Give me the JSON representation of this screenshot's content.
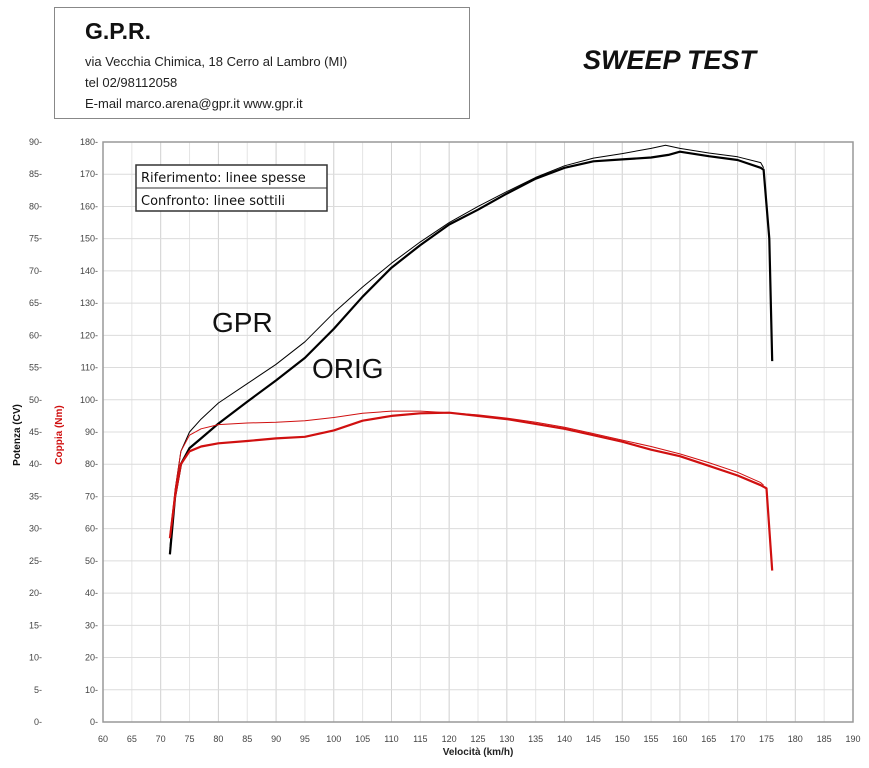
{
  "header": {
    "company": "G.P.R.",
    "address": "via Vecchia Chimica, 18 Cerro al Lambro (MI)",
    "phone": "tel 02/98112058",
    "contact": "E-mail marco.arena@gpr.it  www.gpr.it"
  },
  "title": "SWEEP TEST",
  "chart_data": {
    "type": "line",
    "title": "SWEEP TEST",
    "xlabel": "Velocità (km/h)",
    "ylabel_left": "Potenza (CV)",
    "ylabel_right": "Coppia (Nm)",
    "xlim": [
      60,
      190
    ],
    "ylim_left": [
      0,
      90
    ],
    "ylim_right": [
      0,
      180
    ],
    "xticks": [
      60,
      65,
      70,
      75,
      80,
      85,
      90,
      95,
      100,
      105,
      110,
      115,
      120,
      125,
      130,
      135,
      140,
      145,
      150,
      155,
      160,
      165,
      170,
      175,
      180,
      185,
      190
    ],
    "yticks_left": [
      0,
      5,
      10,
      15,
      20,
      25,
      30,
      35,
      40,
      45,
      50,
      55,
      60,
      65,
      70,
      75,
      80,
      85,
      90
    ],
    "yticks_right": [
      0,
      10,
      20,
      30,
      40,
      50,
      60,
      70,
      80,
      90,
      100,
      110,
      120,
      130,
      140,
      150,
      160,
      170,
      180
    ],
    "grid": true,
    "legend": [
      "Riferimento: linee spesse",
      "Confronto: linee sottili"
    ],
    "legend_placement": "top-left",
    "annotations": [
      "GPR",
      "ORIG"
    ],
    "colors": {
      "power": "#000000",
      "torque": "#d01010"
    },
    "series": [
      {
        "name": "ORIG",
        "quantity": "power",
        "axis": "left",
        "style": "thick",
        "points": [
          [
            71.6,
            26
          ],
          [
            72.5,
            35
          ],
          [
            73.5,
            40
          ],
          [
            75,
            42.5
          ],
          [
            77,
            44
          ],
          [
            80,
            46.3
          ],
          [
            85,
            49.7
          ],
          [
            90,
            53
          ],
          [
            95,
            56.5
          ],
          [
            100,
            61
          ],
          [
            105,
            66
          ],
          [
            110,
            70.5
          ],
          [
            115,
            74
          ],
          [
            120,
            77.2
          ],
          [
            125,
            79.5
          ],
          [
            130,
            82
          ],
          [
            135,
            84.3
          ],
          [
            140,
            86
          ],
          [
            145,
            87
          ],
          [
            150,
            87.3
          ],
          [
            155,
            87.6
          ],
          [
            158,
            88
          ],
          [
            160,
            88.5
          ],
          [
            165,
            87.8
          ],
          [
            170,
            87.2
          ],
          [
            174,
            86
          ],
          [
            174.5,
            85.7
          ],
          [
            175.5,
            75
          ],
          [
            176,
            56
          ]
        ]
      },
      {
        "name": "GPR",
        "quantity": "power",
        "axis": "left",
        "style": "thin",
        "points": [
          [
            71.6,
            27
          ],
          [
            72.5,
            36
          ],
          [
            73.5,
            42
          ],
          [
            75,
            45
          ],
          [
            77,
            47
          ],
          [
            80,
            49.5
          ],
          [
            85,
            52.5
          ],
          [
            90,
            55.5
          ],
          [
            95,
            59
          ],
          [
            100,
            63.5
          ],
          [
            105,
            67.5
          ],
          [
            110,
            71.2
          ],
          [
            115,
            74.5
          ],
          [
            120,
            77.5
          ],
          [
            125,
            80
          ],
          [
            130,
            82.3
          ],
          [
            135,
            84.5
          ],
          [
            140,
            86.3
          ],
          [
            145,
            87.5
          ],
          [
            150,
            88.2
          ],
          [
            155,
            89
          ],
          [
            157.5,
            89.5
          ],
          [
            160,
            89
          ],
          [
            165,
            88.3
          ],
          [
            170,
            87.7
          ],
          [
            174,
            86.8
          ],
          [
            174.5,
            86
          ]
        ]
      },
      {
        "name": "ORIG",
        "quantity": "torque",
        "axis": "right",
        "style": "thick",
        "points": [
          [
            71.6,
            57
          ],
          [
            72.5,
            70
          ],
          [
            73.5,
            80
          ],
          [
            75,
            84
          ],
          [
            77,
            85.5
          ],
          [
            80,
            86.5
          ],
          [
            85,
            87.2
          ],
          [
            90,
            88
          ],
          [
            95,
            88.5
          ],
          [
            100,
            90.5
          ],
          [
            105,
            93.5
          ],
          [
            110,
            95
          ],
          [
            115,
            95.8
          ],
          [
            120,
            96
          ],
          [
            125,
            95
          ],
          [
            130,
            94
          ],
          [
            135,
            92.5
          ],
          [
            140,
            91
          ],
          [
            145,
            89
          ],
          [
            150,
            87
          ],
          [
            155,
            84.5
          ],
          [
            160,
            82.5
          ],
          [
            165,
            79.5
          ],
          [
            170,
            76.5
          ],
          [
            174,
            73.5
          ],
          [
            175,
            72.5
          ],
          [
            175.5,
            60
          ],
          [
            176,
            47
          ]
        ]
      },
      {
        "name": "GPR",
        "quantity": "torque",
        "axis": "right",
        "style": "thin",
        "points": [
          [
            71.6,
            58
          ],
          [
            72.5,
            72
          ],
          [
            73.5,
            84
          ],
          [
            75,
            89
          ],
          [
            77,
            91
          ],
          [
            80,
            92.3
          ],
          [
            85,
            92.8
          ],
          [
            90,
            93
          ],
          [
            95,
            93.5
          ],
          [
            100,
            94.5
          ],
          [
            105,
            95.8
          ],
          [
            110,
            96.5
          ],
          [
            115,
            96.5
          ],
          [
            120,
            96
          ],
          [
            125,
            95.3
          ],
          [
            130,
            94.3
          ],
          [
            135,
            93
          ],
          [
            140,
            91.5
          ],
          [
            145,
            89.5
          ],
          [
            150,
            87.5
          ],
          [
            155,
            85.5
          ],
          [
            160,
            83.2
          ],
          [
            165,
            80.5
          ],
          [
            170,
            77.5
          ],
          [
            174,
            74.3
          ],
          [
            174.5,
            73.5
          ]
        ]
      }
    ]
  }
}
